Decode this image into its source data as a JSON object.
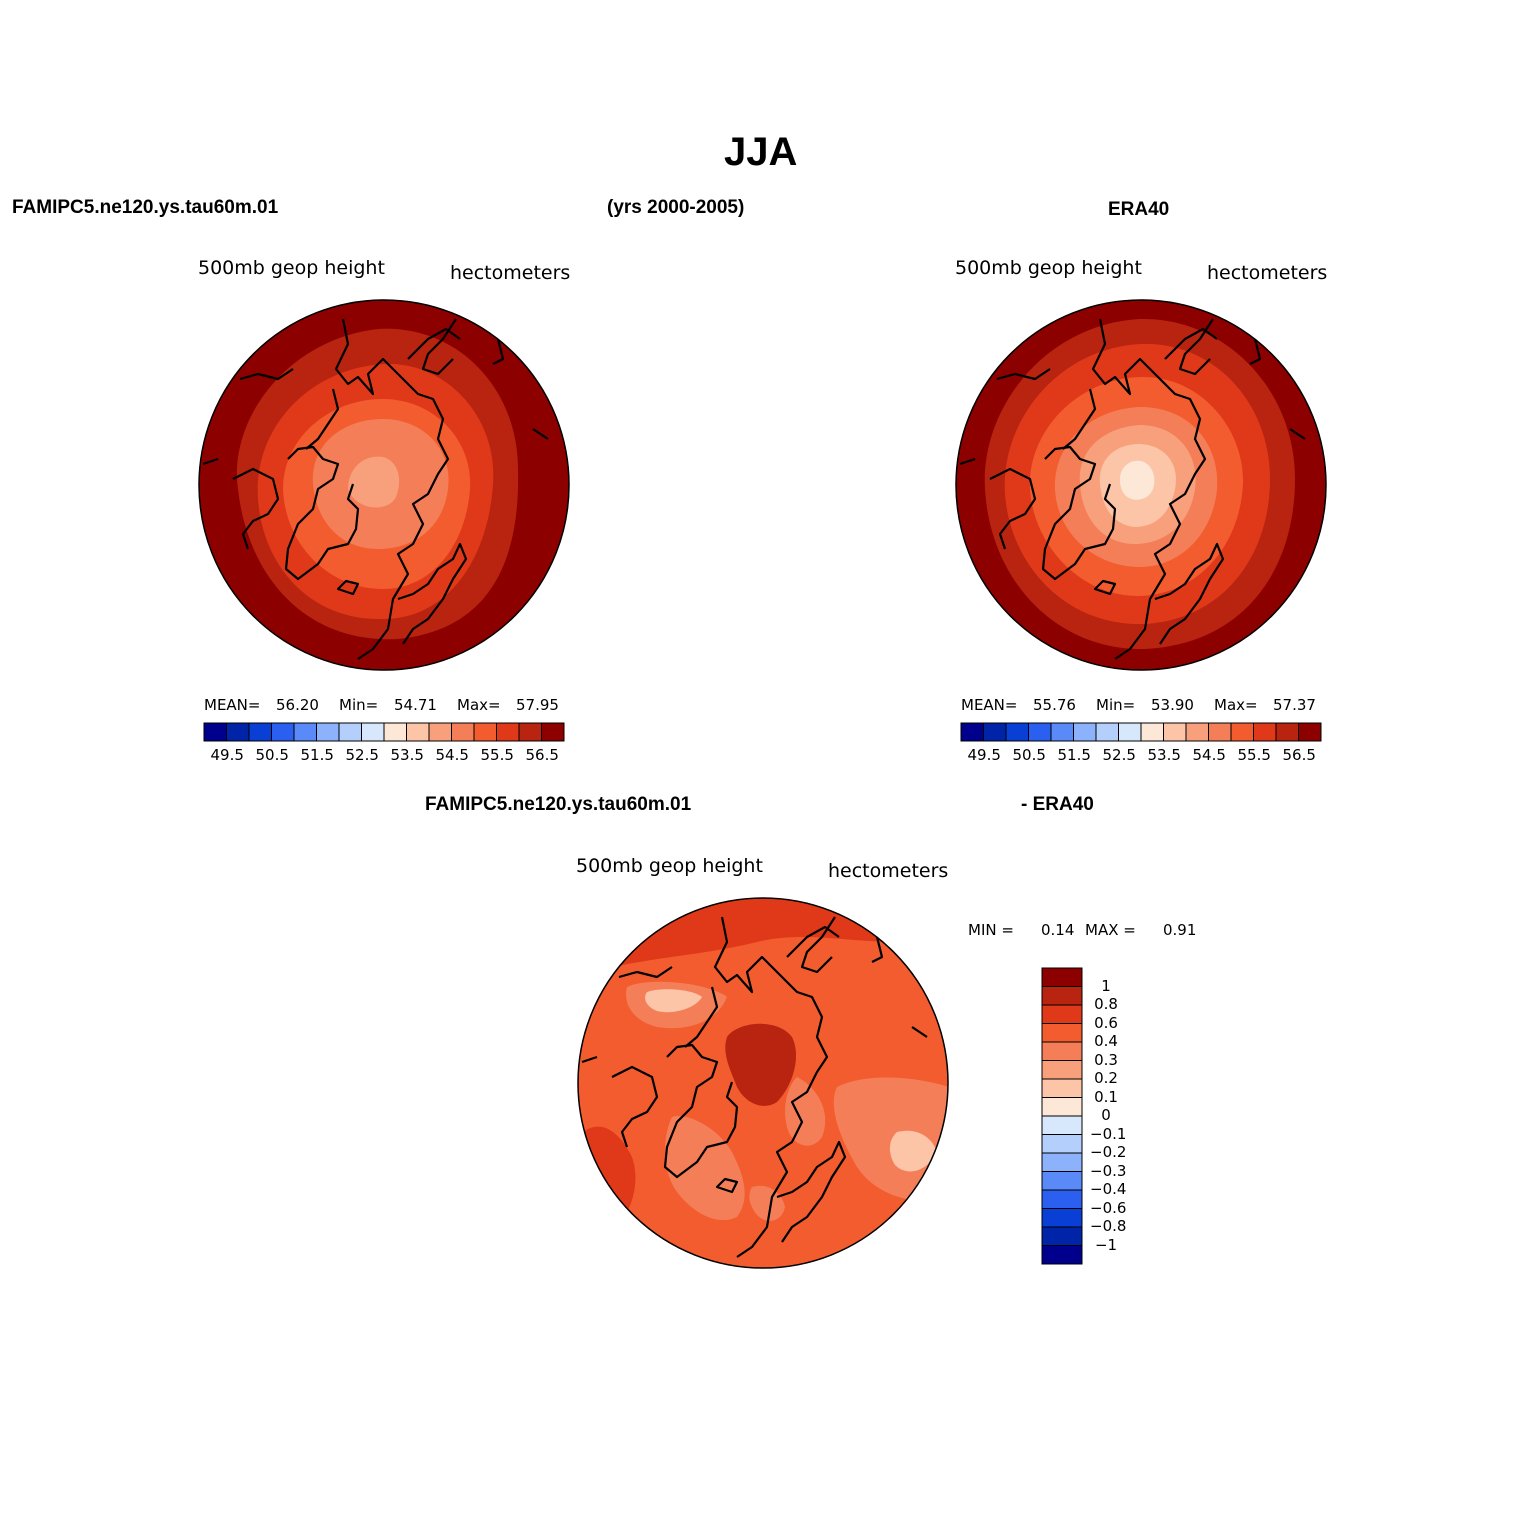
{
  "figure": {
    "title": "JJA",
    "left_header": "FAMIPC5.ne120.ys.tau60m.01",
    "center_header": "(yrs 2000-2005)",
    "right_header": "ERA40",
    "diff_header_left": "FAMIPC5.ne120.ys.tau60m.01",
    "diff_header_right": "- ERA40"
  },
  "colors": {
    "scale": [
      "#00008c",
      "#0024a8",
      "#0a3fd6",
      "#2a5ff0",
      "#5a8af8",
      "#8cb2fc",
      "#b5cffc",
      "#d8e8fc",
      "#fde8d8",
      "#fcc5a8",
      "#f8a07c",
      "#f47e58",
      "#f25c2e",
      "#e0391a",
      "#b82410",
      "#8c0000"
    ]
  },
  "plots": {
    "model": {
      "variable_label": "500mb  geop  height",
      "units_label": "hectometers",
      "mean_label": "MEAN=",
      "mean_value": "56.20",
      "min_label": "Min=",
      "min_value": "54.71",
      "max_label": "Max=",
      "max_value": "57.95",
      "colorbar_ticks": [
        "49.5",
        "50.5",
        "51.5",
        "52.5",
        "53.5",
        "54.5",
        "55.5",
        "56.5"
      ]
    },
    "obs": {
      "variable_label": "500mb  geop  height",
      "units_label": "hectometers",
      "mean_label": "MEAN=",
      "mean_value": "55.76",
      "min_label": "Min=",
      "min_value": "53.90",
      "max_label": "Max=",
      "max_value": "57.37",
      "colorbar_ticks": [
        "49.5",
        "50.5",
        "51.5",
        "52.5",
        "53.5",
        "54.5",
        "55.5",
        "56.5"
      ]
    },
    "diff": {
      "variable_label": "500mb  geop  height",
      "units_label": "hectometers",
      "min_label": "MIN =",
      "min_value": "0.14",
      "max_label": "MAX =",
      "max_value": "0.91",
      "colorbar_ticks": [
        "1",
        "0.8",
        "0.6",
        "0.4",
        "0.3",
        "0.2",
        "0.1",
        "0",
        "−0.1",
        "−0.2",
        "−0.3",
        "−0.4",
        "−0.6",
        "−0.8",
        "−1"
      ]
    }
  }
}
